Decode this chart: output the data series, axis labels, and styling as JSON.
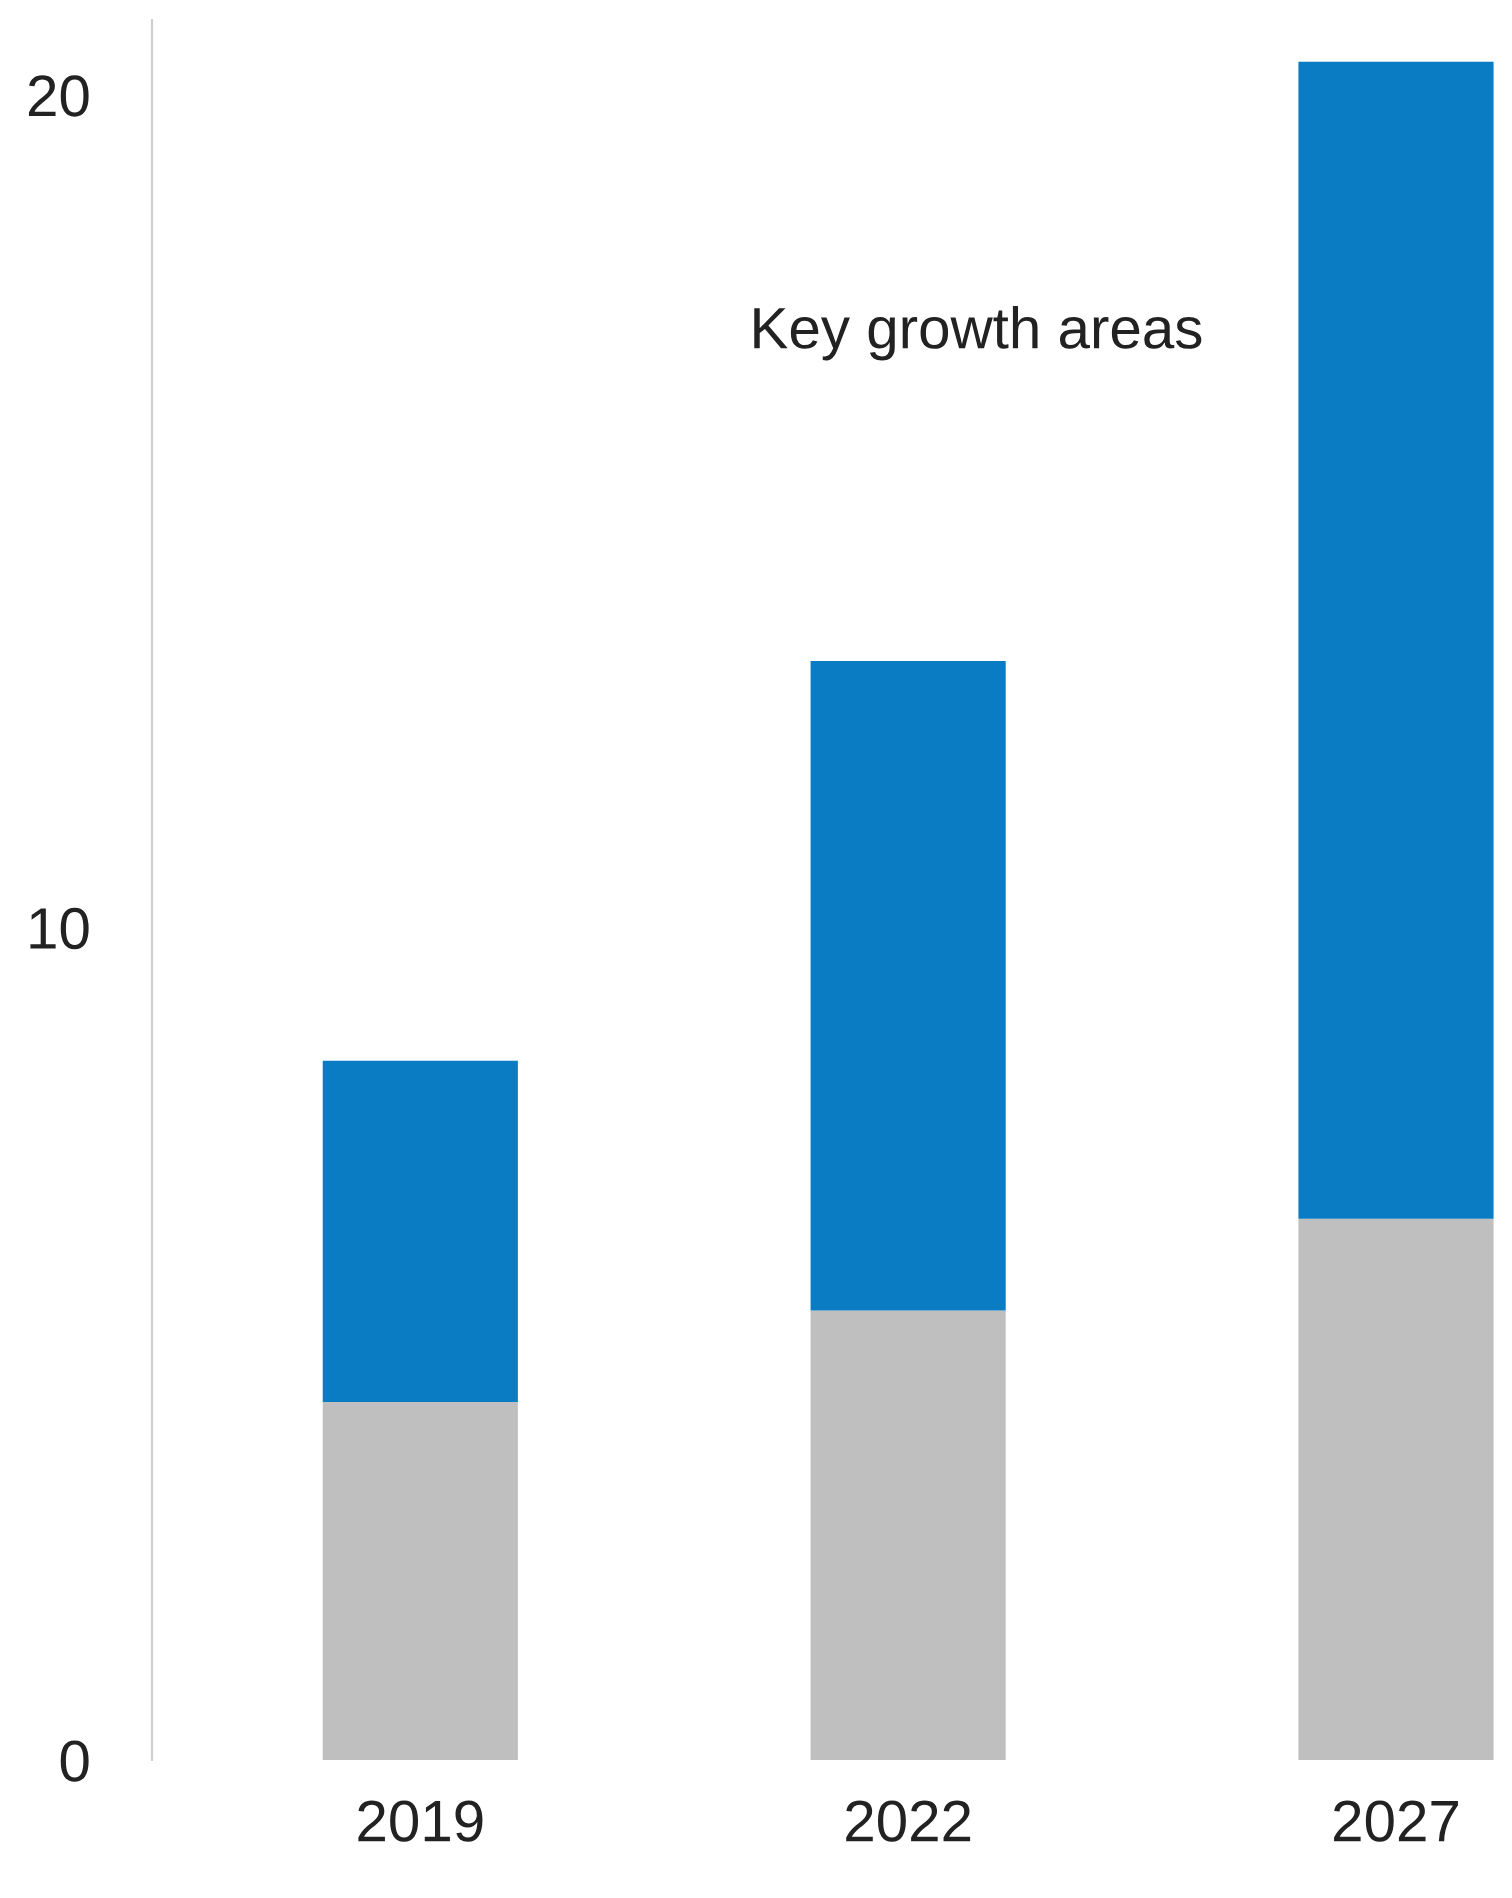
{
  "chart_data": {
    "type": "bar",
    "stacked": true,
    "categories": [
      "2019",
      "2022",
      "2027"
    ],
    "series": [
      {
        "color": "#bfbfbf",
        "values": [
          4.3,
          5.4,
          6.5
        ]
      },
      {
        "name": "Key growth areas",
        "color": "#0a7cc4",
        "values": [
          4.1,
          7.8,
          13.9
        ]
      }
    ],
    "ylim": [
      0,
      20.9
    ],
    "yticks": [
      0,
      10,
      20
    ],
    "grid": false,
    "legend": false
  }
}
